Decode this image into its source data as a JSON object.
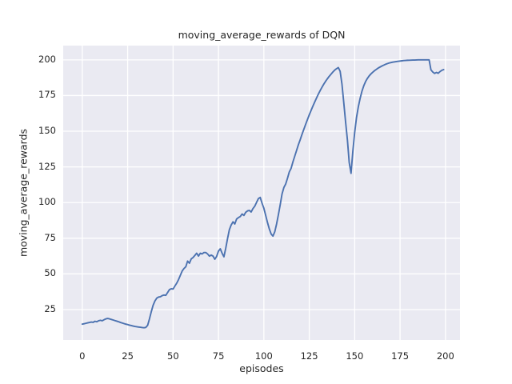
{
  "chart_data": {
    "type": "line",
    "title": "moving_average_rewards of DQN",
    "xlabel": "episodes",
    "ylabel": "moving_average_rewards",
    "x_ticks": [
      0,
      25,
      50,
      75,
      100,
      125,
      150,
      175,
      200
    ],
    "y_ticks": [
      25,
      50,
      75,
      100,
      125,
      150,
      175,
      200
    ],
    "xlim": [
      -10.5,
      208
    ],
    "ylim": [
      3.7,
      210
    ],
    "grid": true,
    "legend_position": "none",
    "colors": {
      "line": "#4c72b0",
      "axes_background": "#eaeaf2",
      "grid": "#ffffff",
      "text": "#262626",
      "figure_background": "#ffffff"
    },
    "series": [
      {
        "name": "moving_average_rewards",
        "points": [
          [
            0,
            14.8
          ],
          [
            1,
            15.1
          ],
          [
            2,
            15.4
          ],
          [
            3,
            15.7
          ],
          [
            4,
            16.0
          ],
          [
            5,
            16.3
          ],
          [
            6,
            16.1
          ],
          [
            7,
            16.8
          ],
          [
            8,
            16.5
          ],
          [
            9,
            17.2
          ],
          [
            10,
            17.5
          ],
          [
            11,
            17.2
          ],
          [
            12,
            17.9
          ],
          [
            13,
            18.5
          ],
          [
            14,
            18.8
          ],
          [
            15,
            18.5
          ],
          [
            16,
            18.1
          ],
          [
            17,
            17.7
          ],
          [
            18,
            17.3
          ],
          [
            19,
            16.9
          ],
          [
            20,
            16.5
          ],
          [
            21,
            16.0
          ],
          [
            22,
            15.6
          ],
          [
            23,
            15.2
          ],
          [
            24,
            14.8
          ],
          [
            25,
            14.5
          ],
          [
            26,
            14.1
          ],
          [
            27,
            13.8
          ],
          [
            28,
            13.5
          ],
          [
            29,
            13.2
          ],
          [
            30,
            13.0
          ],
          [
            31,
            12.8
          ],
          [
            32,
            12.6
          ],
          [
            33,
            12.4
          ],
          [
            34,
            12.3
          ],
          [
            35,
            12.5
          ],
          [
            36,
            14.0
          ],
          [
            37,
            18.5
          ],
          [
            38,
            23.5
          ],
          [
            39,
            28.0
          ],
          [
            40,
            31.0
          ],
          [
            41,
            33.0
          ],
          [
            42,
            33.8
          ],
          [
            43,
            34.0
          ],
          [
            44,
            34.8
          ],
          [
            45,
            35.2
          ],
          [
            46,
            35.0
          ],
          [
            47,
            37.0
          ],
          [
            48,
            39.0
          ],
          [
            49,
            39.6
          ],
          [
            50,
            39.4
          ],
          [
            51,
            41.5
          ],
          [
            52,
            43.5
          ],
          [
            53,
            46.0
          ],
          [
            54,
            49.0
          ],
          [
            55,
            52.0
          ],
          [
            56,
            53.8
          ],
          [
            57,
            55.0
          ],
          [
            58,
            59.0
          ],
          [
            59,
            57.5
          ],
          [
            60,
            60.5
          ],
          [
            61,
            61.5
          ],
          [
            62,
            63.0
          ],
          [
            63,
            64.5
          ],
          [
            64,
            62.5
          ],
          [
            65,
            64.5
          ],
          [
            66,
            64.0
          ],
          [
            67,
            65.0
          ],
          [
            68,
            65.0
          ],
          [
            69,
            64.0
          ],
          [
            70,
            62.5
          ],
          [
            71,
            63.2
          ],
          [
            72,
            62.5
          ],
          [
            73,
            60.3
          ],
          [
            74,
            62.3
          ],
          [
            75,
            66.0
          ],
          [
            76,
            67.6
          ],
          [
            77,
            64.5
          ],
          [
            78,
            62.0
          ],
          [
            79,
            68.0
          ],
          [
            80,
            74.8
          ],
          [
            81,
            81.0
          ],
          [
            82,
            84.3
          ],
          [
            83,
            86.5
          ],
          [
            84,
            85.0
          ],
          [
            85,
            88.5
          ],
          [
            86,
            89.5
          ],
          [
            87,
            90.2
          ],
          [
            88,
            92.0
          ],
          [
            89,
            91.0
          ],
          [
            90,
            93.2
          ],
          [
            91,
            94.2
          ],
          [
            92,
            94.5
          ],
          [
            93,
            93.4
          ],
          [
            94,
            95.8
          ],
          [
            95,
            97.5
          ],
          [
            96,
            100.2
          ],
          [
            97,
            102.8
          ],
          [
            98,
            103.6
          ],
          [
            99,
            99.5
          ],
          [
            100,
            96.0
          ],
          [
            101,
            91.0
          ],
          [
            102,
            86.0
          ],
          [
            103,
            81.5
          ],
          [
            104,
            78.0
          ],
          [
            105,
            76.5
          ],
          [
            106,
            79.5
          ],
          [
            107,
            85.0
          ],
          [
            108,
            91.5
          ],
          [
            109,
            98.5
          ],
          [
            110,
            106.0
          ],
          [
            111,
            110.5
          ],
          [
            112,
            113.0
          ],
          [
            113,
            117.0
          ],
          [
            114,
            121.5
          ],
          [
            115,
            124.0
          ],
          [
            116,
            128.5
          ],
          [
            117,
            132.5
          ],
          [
            118,
            136.5
          ],
          [
            119,
            140.5
          ],
          [
            120,
            144.0
          ],
          [
            121,
            147.8
          ],
          [
            122,
            151.3
          ],
          [
            123,
            154.8
          ],
          [
            124,
            158.2
          ],
          [
            125,
            161.5
          ],
          [
            126,
            164.6
          ],
          [
            127,
            167.6
          ],
          [
            128,
            170.5
          ],
          [
            129,
            173.3
          ],
          [
            130,
            176.0
          ],
          [
            131,
            178.5
          ],
          [
            132,
            180.8
          ],
          [
            133,
            183.0
          ],
          [
            134,
            185.0
          ],
          [
            135,
            186.8
          ],
          [
            136,
            188.5
          ],
          [
            137,
            190.0
          ],
          [
            138,
            191.5
          ],
          [
            139,
            192.8
          ],
          [
            140,
            193.8
          ],
          [
            141,
            194.6
          ],
          [
            142,
            192.0
          ],
          [
            143,
            183.0
          ],
          [
            144,
            170.0
          ],
          [
            145,
            156.5
          ],
          [
            146,
            144.0
          ],
          [
            147,
            128.0
          ],
          [
            148,
            120.5
          ],
          [
            149,
            136.0
          ],
          [
            150,
            149.0
          ],
          [
            151,
            159.5
          ],
          [
            152,
            167.0
          ],
          [
            153,
            173.0
          ],
          [
            154,
            178.0
          ],
          [
            155,
            181.8
          ],
          [
            156,
            184.8
          ],
          [
            157,
            187.0
          ],
          [
            158,
            188.8
          ],
          [
            159,
            190.2
          ],
          [
            160,
            191.4
          ],
          [
            161,
            192.5
          ],
          [
            162,
            193.4
          ],
          [
            163,
            194.3
          ],
          [
            164,
            195.0
          ],
          [
            165,
            195.7
          ],
          [
            166,
            196.3
          ],
          [
            167,
            196.9
          ],
          [
            168,
            197.4
          ],
          [
            169,
            197.8
          ],
          [
            170,
            198.1
          ],
          [
            171,
            198.4
          ],
          [
            172,
            198.6
          ],
          [
            173,
            198.8
          ],
          [
            174,
            199.0
          ],
          [
            175,
            199.2
          ],
          [
            176,
            199.35
          ],
          [
            177,
            199.5
          ],
          [
            178,
            199.6
          ],
          [
            179,
            199.7
          ],
          [
            180,
            199.75
          ],
          [
            181,
            199.8
          ],
          [
            182,
            199.85
          ],
          [
            183,
            199.9
          ],
          [
            184,
            199.95
          ],
          [
            185,
            200.0
          ],
          [
            186,
            200.0
          ],
          [
            187,
            200.0
          ],
          [
            188,
            200.0
          ],
          [
            189,
            200.0
          ],
          [
            190,
            200.0
          ],
          [
            191,
            200.0
          ],
          [
            192,
            193.0
          ],
          [
            193,
            191.5
          ],
          [
            194,
            190.5
          ],
          [
            195,
            191.2
          ],
          [
            196,
            190.6
          ],
          [
            197,
            191.8
          ],
          [
            198,
            192.7
          ],
          [
            199,
            193.2
          ]
        ]
      }
    ]
  }
}
